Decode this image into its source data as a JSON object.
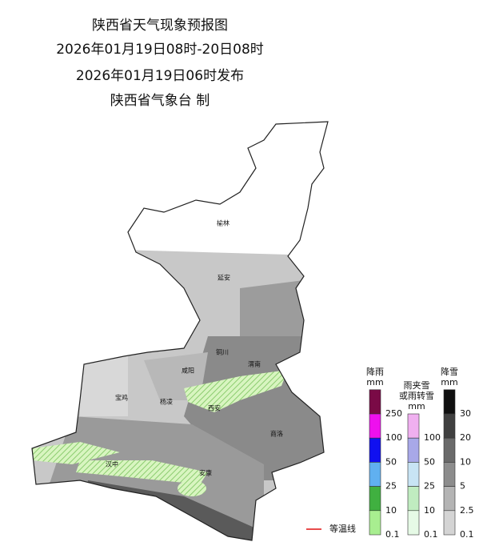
{
  "header": {
    "lines": [
      "陕西省天气现象预报图",
      "2026年01月19日08时-20日08时",
      "2026年01月19日06时发布",
      "陕西省气象台 制"
    ]
  },
  "map": {
    "cities": [
      "榆林",
      "延安",
      "铜川",
      "渭南",
      "咸阳",
      "宝鸡",
      "杨凌",
      "西安",
      "商洛",
      "汉中",
      "安康"
    ]
  },
  "legend": {
    "rain": {
      "title": "降雨",
      "unit": "mm",
      "levels": [
        {
          "value": 250,
          "color": "#7a0a46"
        },
        {
          "value": 100,
          "color": "#ee10ee"
        },
        {
          "value": 50,
          "color": "#1010f0"
        },
        {
          "value": 25,
          "color": "#60b0f0"
        },
        {
          "value": 10,
          "color": "#40b040"
        },
        {
          "value": 0.1,
          "color": "#a8ee90"
        }
      ]
    },
    "mix": {
      "title": [
        "雨夹雪",
        "或雨转雪"
      ],
      "unit": "mm",
      "levels": [
        {
          "value": 100,
          "color": "#f0b0f0"
        },
        {
          "value": 50,
          "color": "#a8a8e8"
        },
        {
          "value": 25,
          "color": "#c8e4f4"
        },
        {
          "value": 10,
          "color": "#c0ecc0"
        },
        {
          "value": 0.1,
          "color": "#e6fae6"
        }
      ]
    },
    "snow": {
      "title": "降雪",
      "unit": "mm",
      "levels": [
        {
          "value": 30,
          "color": "#101010"
        },
        {
          "value": 20,
          "color": "#404040"
        },
        {
          "value": 10,
          "color": "#6a6a6a"
        },
        {
          "value": 5,
          "color": "#8c8c8c"
        },
        {
          "value": 2.5,
          "color": "#b4b4b4"
        },
        {
          "value": 0.1,
          "color": "#d4d4d4"
        }
      ]
    }
  },
  "isotherm": {
    "label": "等温线",
    "color": "#e01010"
  }
}
